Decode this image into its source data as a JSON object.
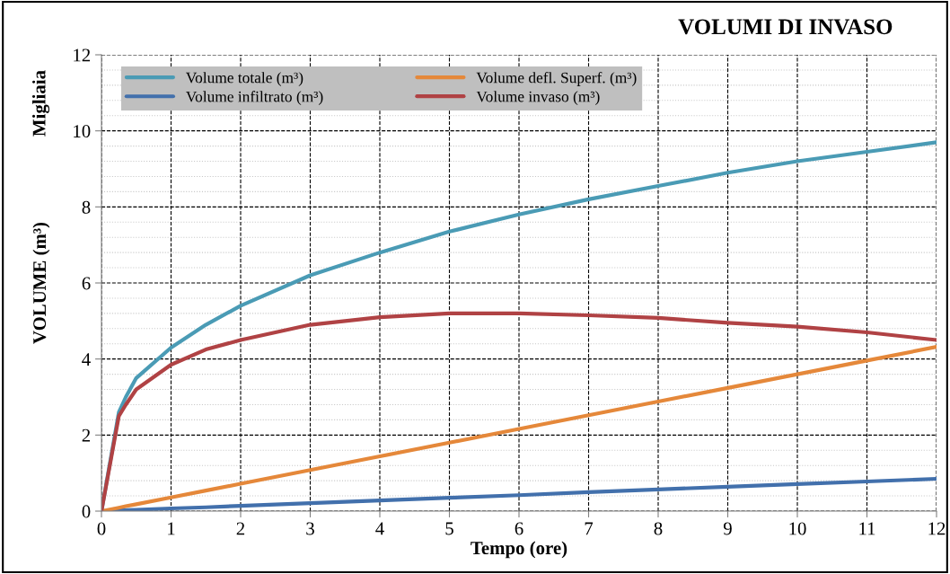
{
  "chart_data": {
    "type": "line",
    "title": "VOLUMI DI INVASO",
    "xlabel": "Tempo (ore)",
    "ylabel": "VOLUME (m³)",
    "annotations": [
      "Migliaia"
    ],
    "x": [
      0,
      0.25,
      0.35,
      0.5,
      1,
      1.5,
      2,
      3,
      4,
      5,
      6,
      7,
      8,
      9,
      10,
      11,
      12
    ],
    "series": [
      {
        "name": "Volume totale (m³)",
        "color": "#4a9bb5",
        "values": [
          0,
          2.6,
          3.0,
          3.5,
          4.3,
          4.9,
          5.4,
          6.2,
          6.8,
          7.35,
          7.8,
          8.2,
          8.55,
          8.9,
          9.2,
          9.45,
          9.7
        ]
      },
      {
        "name": "Volume infiltrato (m³)",
        "color": "#4270ac",
        "values": [
          0,
          0.02,
          0.025,
          0.035,
          0.07,
          0.1,
          0.14,
          0.21,
          0.28,
          0.35,
          0.42,
          0.5,
          0.57,
          0.64,
          0.71,
          0.78,
          0.85
        ]
      },
      {
        "name": "Volume defl. Superf. (m³)",
        "color": "#e5883a",
        "values": [
          0,
          0.09,
          0.13,
          0.18,
          0.36,
          0.54,
          0.72,
          1.08,
          1.44,
          1.8,
          2.16,
          2.52,
          2.88,
          3.24,
          3.6,
          3.96,
          4.32
        ]
      },
      {
        "name": "Volume invaso (m³)",
        "color": "#b04244",
        "values": [
          0,
          2.5,
          2.8,
          3.2,
          3.85,
          4.25,
          4.5,
          4.9,
          5.1,
          5.2,
          5.2,
          5.15,
          5.08,
          4.95,
          4.85,
          4.7,
          4.5
        ]
      }
    ],
    "xlim": [
      0,
      12
    ],
    "xticks": [
      0,
      1,
      2,
      3,
      4,
      5,
      6,
      7,
      8,
      9,
      10,
      11,
      12
    ],
    "ylim": [
      0,
      12
    ],
    "yticks": [
      0,
      2,
      4,
      6,
      8,
      10,
      12
    ],
    "grid": true,
    "legend": "top left",
    "marker": "none",
    "line_style": "solid"
  }
}
